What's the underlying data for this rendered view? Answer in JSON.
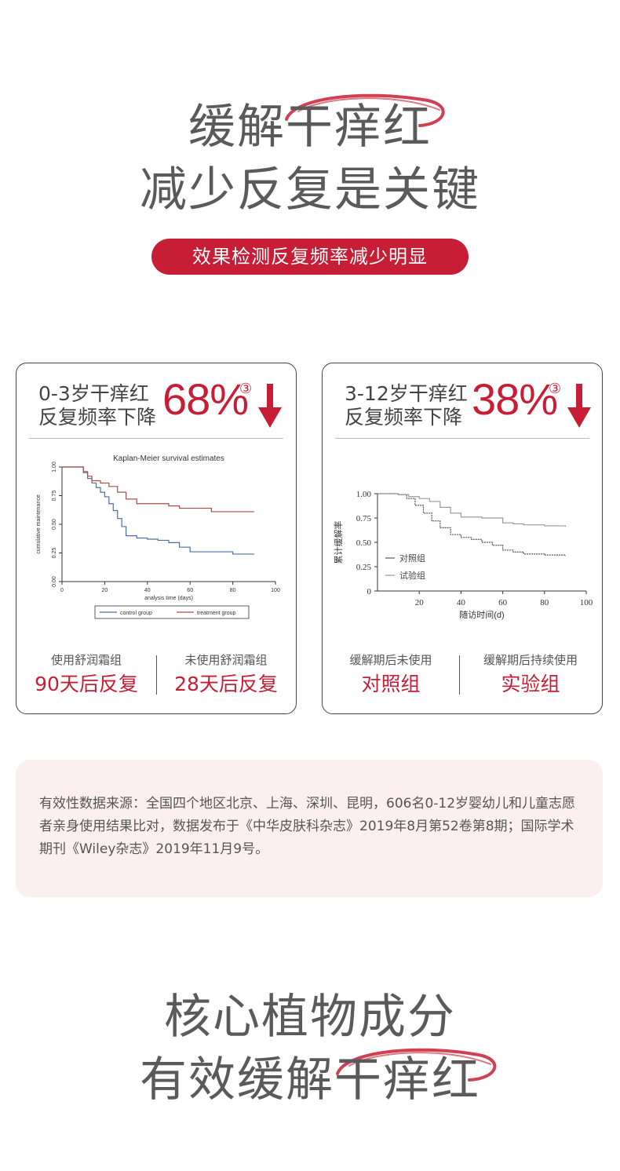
{
  "headline1": {
    "line1": "缓解干痒红",
    "line2": "减少反复是关键"
  },
  "pill": "效果检测反复频率减少明显",
  "cards": [
    {
      "label_line1": "0-3岁干痒红",
      "label_line2": "反复频率下降",
      "percent": "68%",
      "circled": "③",
      "left": {
        "small": "使用舒润霜组",
        "big": "90天后反复"
      },
      "right": {
        "small": "未使用舒润霜组",
        "big": "28天后反复"
      }
    },
    {
      "label_line1": "3-12岁干痒红",
      "label_line2": "反复频率下降",
      "percent": "38%",
      "circled": "③",
      "left": {
        "small": "缓解期后未使用",
        "big": "对照组"
      },
      "right": {
        "small": "缓解期后持续使用",
        "big": "实验组"
      }
    }
  ],
  "chart_data": [
    {
      "type": "line",
      "title": "Kaplan-Meier survival estimates",
      "xlabel": "analysis time (days)",
      "ylabel": "cumulative maintenance",
      "xlim": [
        0,
        100
      ],
      "ylim": [
        0,
        1
      ],
      "xticks": [
        "0",
        "20",
        "40",
        "60",
        "80",
        "100"
      ],
      "yticks": [
        "0.00",
        "0.25",
        "0.50",
        "0.75",
        "1.00"
      ],
      "legend_position": "bottom",
      "series": [
        {
          "name": "control group",
          "color": "#4a6fa5",
          "x": [
            0,
            8,
            10,
            12,
            14,
            16,
            18,
            20,
            22,
            24,
            26,
            28,
            30,
            35,
            40,
            45,
            50,
            55,
            60,
            70,
            80,
            90
          ],
          "y": [
            1.0,
            1.0,
            0.95,
            0.9,
            0.86,
            0.82,
            0.78,
            0.74,
            0.68,
            0.62,
            0.55,
            0.48,
            0.4,
            0.38,
            0.37,
            0.36,
            0.34,
            0.3,
            0.26,
            0.26,
            0.24,
            0.24
          ]
        },
        {
          "name": "treatment group",
          "color": "#b04a4a",
          "x": [
            0,
            8,
            10,
            12,
            14,
            18,
            22,
            26,
            30,
            35,
            40,
            50,
            55,
            60,
            70,
            80,
            90
          ],
          "y": [
            1.0,
            1.0,
            0.96,
            0.92,
            0.88,
            0.86,
            0.83,
            0.78,
            0.72,
            0.68,
            0.68,
            0.66,
            0.64,
            0.64,
            0.61,
            0.61,
            0.61
          ]
        }
      ]
    },
    {
      "type": "line",
      "title": "",
      "xlabel": "随访时间(d)",
      "ylabel": "累计缓解率",
      "xlim": [
        0,
        100
      ],
      "ylim": [
        0,
        1
      ],
      "xticks": [
        "20",
        "40",
        "60",
        "80",
        "100"
      ],
      "yticks": [
        "0",
        "0.25",
        "0.50",
        "0.75",
        "1.00"
      ],
      "legend_position": "bottom-left",
      "series": [
        {
          "name": "对照组",
          "color": "#555555",
          "x": [
            0,
            5,
            10,
            14,
            18,
            22,
            26,
            30,
            35,
            40,
            45,
            50,
            55,
            60,
            65,
            70,
            80,
            90
          ],
          "y": [
            1.0,
            1.0,
            0.99,
            0.95,
            0.88,
            0.8,
            0.72,
            0.65,
            0.58,
            0.55,
            0.53,
            0.5,
            0.47,
            0.42,
            0.4,
            0.38,
            0.37,
            0.36
          ]
        },
        {
          "name": "试验组",
          "color": "#999999",
          "x": [
            0,
            5,
            10,
            15,
            20,
            25,
            30,
            35,
            40,
            50,
            60,
            65,
            70,
            80,
            90
          ],
          "y": [
            1.0,
            1.0,
            0.99,
            0.97,
            0.95,
            0.92,
            0.86,
            0.8,
            0.76,
            0.75,
            0.7,
            0.69,
            0.68,
            0.67,
            0.66
          ]
        }
      ]
    }
  ],
  "source": "有效性数据来源：全国四个地区北京、上海、深圳、昆明，606名0-12岁婴幼儿和儿童志愿者亲身使用结果比对，数据发布于《中华皮肤科杂志》2019年8月第52卷第8期；国际学术期刊《Wiley杂志》2019年11月9号。",
  "headline2": {
    "line1": "核心植物成分",
    "line2": "有效缓解干痒红"
  }
}
